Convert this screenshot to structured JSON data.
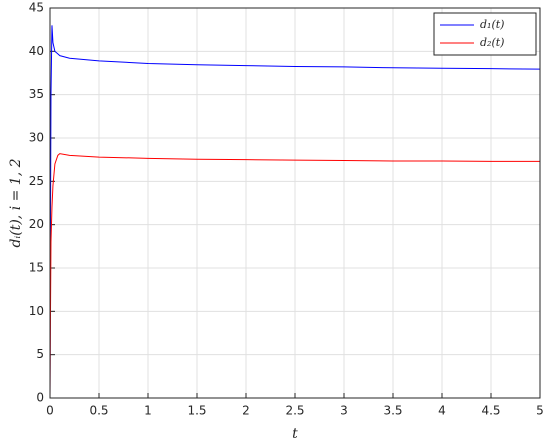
{
  "chart_data": {
    "type": "line",
    "x_label": "t",
    "y_label": "dᵢ(t), i = 1, 2",
    "x": [
      0,
      0.005,
      0.01,
      0.02,
      0.03,
      0.05,
      0.08,
      0.1,
      0.2,
      0.5,
      1,
      1.5,
      2,
      2.5,
      3,
      3.5,
      4,
      4.5,
      5
    ],
    "series": [
      {
        "name": "d₁(t)",
        "color": "#0000ff",
        "values": [
          0,
          20,
          35,
          43,
          41,
          40,
          39.7,
          39.5,
          39.2,
          38.9,
          38.6,
          38.45,
          38.35,
          38.25,
          38.2,
          38.1,
          38.05,
          38,
          37.95
        ]
      },
      {
        "name": "d₂(t)",
        "color": "#ff0000",
        "values": [
          0,
          10,
          18,
          22,
          24.5,
          27,
          28,
          28.2,
          28,
          27.8,
          27.65,
          27.55,
          27.5,
          27.45,
          27.4,
          27.35,
          27.35,
          27.3,
          27.3
        ]
      }
    ],
    "xlim": [
      0,
      5
    ],
    "xticks": [
      0,
      0.5,
      1,
      1.5,
      2,
      2.5,
      3,
      3.5,
      4,
      4.5,
      5
    ],
    "ylim": [
      0,
      45
    ],
    "yticks": [
      0,
      5,
      10,
      15,
      20,
      25,
      30,
      35,
      40,
      45
    ],
    "grid": true,
    "legend": "northeast"
  }
}
